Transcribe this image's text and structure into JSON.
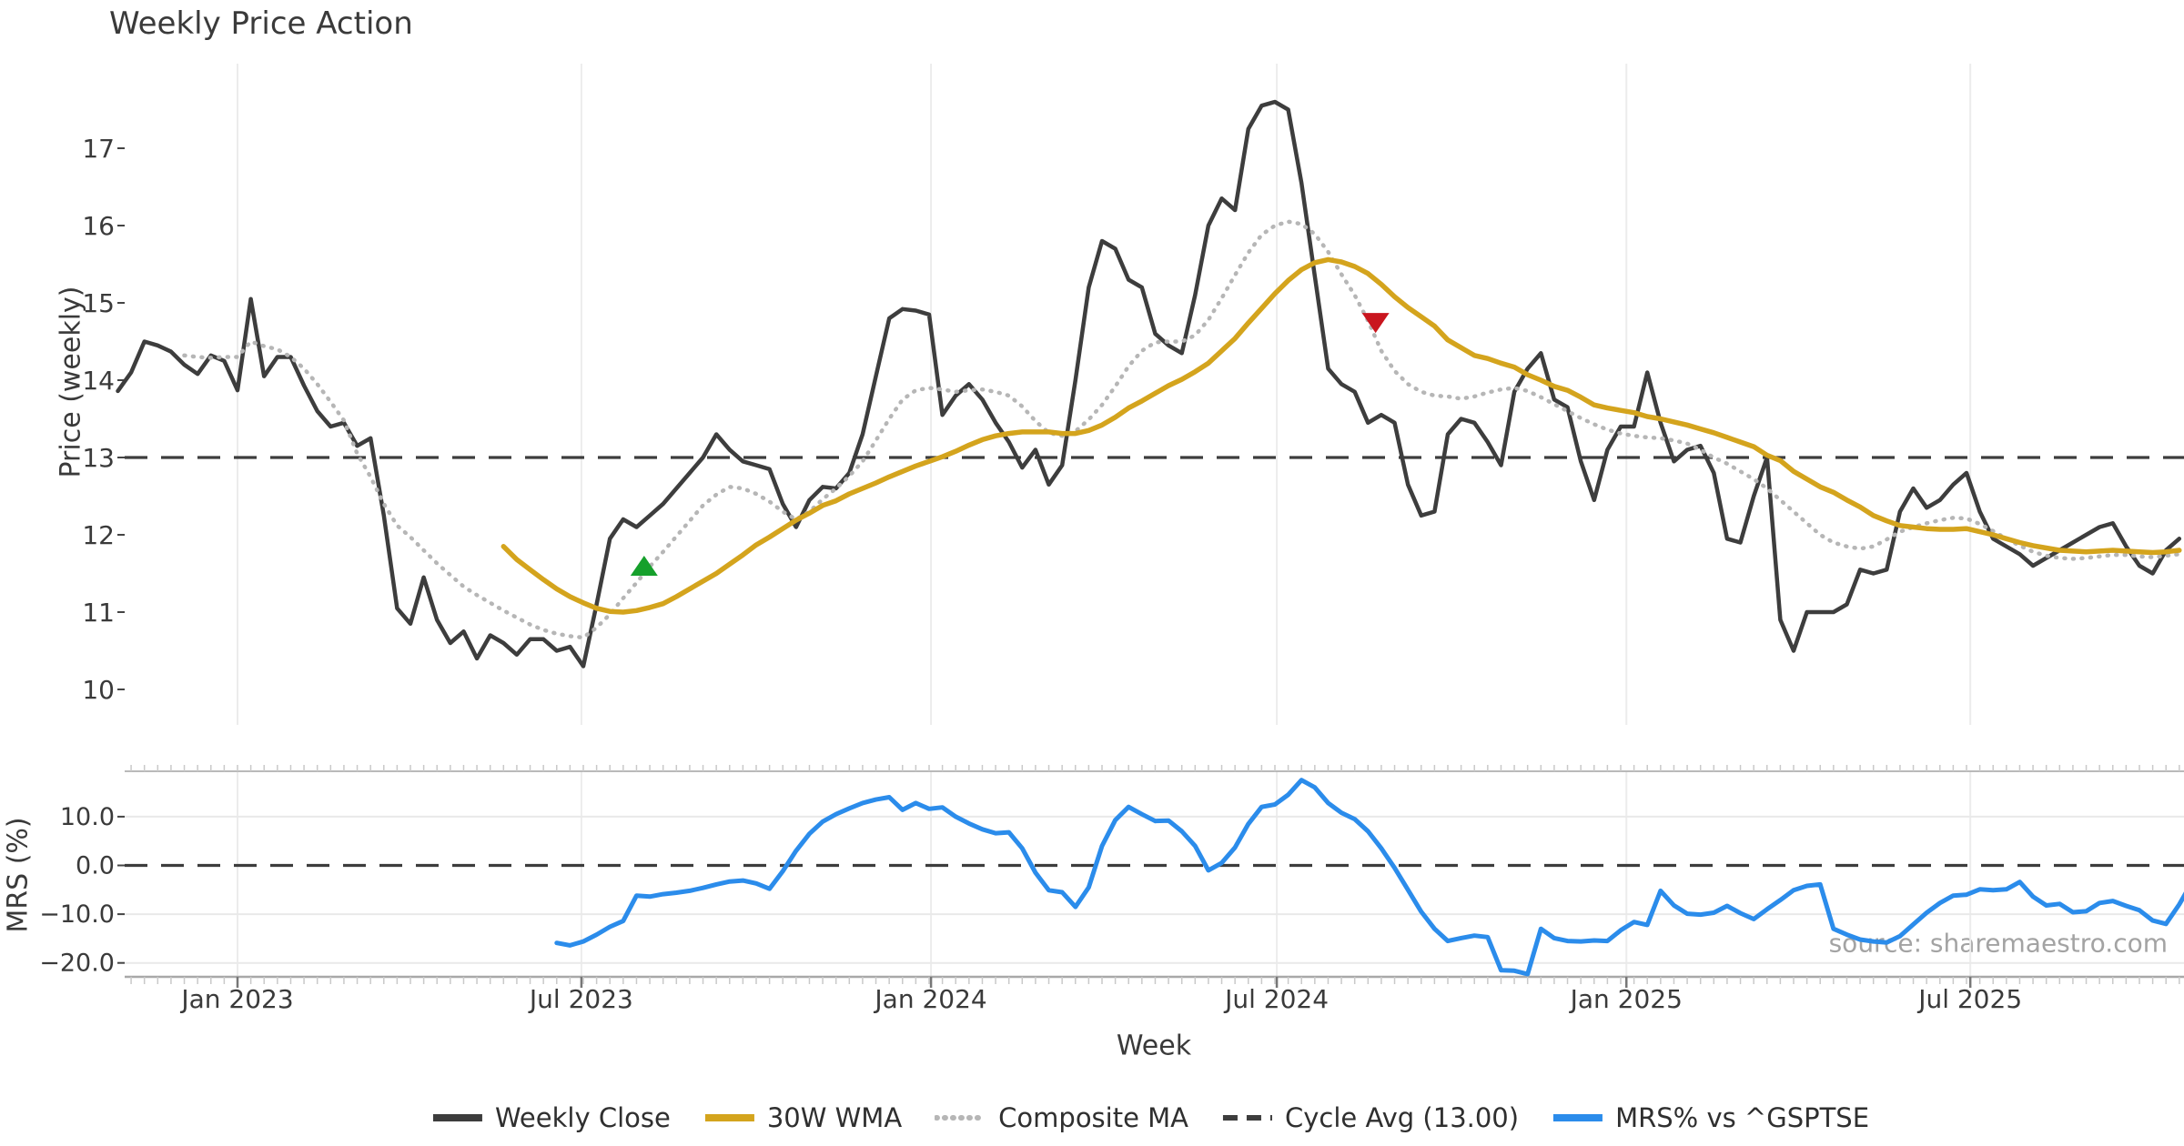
{
  "title": "Weekly Price Action",
  "source_note": "source: sharemaestro.com",
  "colors": {
    "close": "#3d3d3d",
    "wma": "#d4a41d",
    "composite": "#b6b6b6",
    "cycle_dash": "#3d3d3d",
    "mrs_blue": "#2b8ceb",
    "buy_green": "#16a02c",
    "sell_red": "#c9151e",
    "gridline": "#ececec",
    "axis_text": "#3a3a3a",
    "panel_border": "#b9b9b9"
  },
  "legend": {
    "items": [
      {
        "label": "Weekly Close",
        "color": "#3d3d3d",
        "style": "solid"
      },
      {
        "label": "30W WMA",
        "color": "#d4a41d",
        "style": "solid"
      },
      {
        "label": "Composite MA",
        "color": "#b6b6b6",
        "style": "dotted"
      },
      {
        "label": "Cycle Avg (13.00)",
        "color": "#3d3d3d",
        "style": "dashed"
      },
      {
        "label": "MRS% vs ^GSPTSE",
        "color": "#2b8ceb",
        "style": "solid"
      }
    ]
  },
  "chart_data": [
    {
      "type": "line",
      "panel": "price",
      "title": "Weekly Price Action",
      "ylabel": "Price (weekly)",
      "yticks": [
        17,
        16,
        15,
        14,
        13,
        12,
        11,
        10
      ],
      "ylim": [
        9.5,
        18.1
      ],
      "cycle_avg": 13.0,
      "grid": "vertical",
      "xticks": [
        {
          "date": "2023-01-01",
          "label": "Jan 2023"
        },
        {
          "date": "2023-07-01",
          "label": "Jul 2023"
        },
        {
          "date": "2024-01-01",
          "label": "Jan 2024"
        },
        {
          "date": "2024-07-01",
          "label": "Jul 2024"
        },
        {
          "date": "2025-01-01",
          "label": "Jan 2025"
        },
        {
          "date": "2025-07-01",
          "label": "Jul 2025"
        }
      ],
      "series": [
        {
          "name": "Weekly Close",
          "style": "solid",
          "color": "#3d3d3d",
          "width": 4.5,
          "start_date": "2022-10-30",
          "step_days": 7,
          "values": [
            13.86,
            14.1,
            14.5,
            14.45,
            14.37,
            14.2,
            14.08,
            14.32,
            14.25,
            13.87,
            15.05,
            14.05,
            14.3,
            14.3,
            13.93,
            13.6,
            13.4,
            13.45,
            13.15,
            13.25,
            12.25,
            11.05,
            10.85,
            11.45,
            10.9,
            10.6,
            10.75,
            10.4,
            10.7,
            10.6,
            10.45,
            10.65,
            10.65,
            10.5,
            10.55,
            10.3,
            11.1,
            11.95,
            12.2,
            12.1,
            12.25,
            12.4,
            12.6,
            12.8,
            13.0,
            13.3,
            13.1,
            12.95,
            12.9,
            12.85,
            12.4,
            12.1,
            12.45,
            12.62,
            12.6,
            12.8,
            13.3,
            14.05,
            14.8,
            14.92,
            14.9,
            14.85,
            13.55,
            13.8,
            13.95,
            13.75,
            13.45,
            13.2,
            12.87,
            13.1,
            12.65,
            12.9,
            14.0,
            15.2,
            15.8,
            15.7,
            15.3,
            15.2,
            14.6,
            14.45,
            14.35,
            15.1,
            16.0,
            16.35,
            16.2,
            17.25,
            17.55,
            17.6,
            17.5,
            16.55,
            15.35,
            14.15,
            13.95,
            13.85,
            13.45,
            13.55,
            13.45,
            12.65,
            12.25,
            12.3,
            13.3,
            13.5,
            13.45,
            13.2,
            12.9,
            13.85,
            14.15,
            14.35,
            13.75,
            13.65,
            12.95,
            12.45,
            13.1,
            13.4,
            13.4,
            14.1,
            13.45,
            12.95,
            13.1,
            13.15,
            12.8,
            11.95,
            11.9,
            12.5,
            13.0,
            10.9,
            10.5,
            11.0,
            11.0,
            11.0,
            11.1,
            11.55,
            11.5,
            11.55,
            12.3,
            12.6,
            12.35,
            12.45,
            12.65,
            12.8,
            12.3,
            11.95,
            11.85,
            11.75,
            11.6,
            11.7,
            11.8,
            11.9,
            12.0,
            12.1,
            12.15,
            11.85,
            11.6,
            11.5,
            11.8,
            11.95
          ]
        },
        {
          "name": "30W WMA",
          "style": "solid",
          "color": "#d4a41d",
          "width": 5.5,
          "start_date": "2023-05-21",
          "step_days": 7,
          "values": [
            11.85,
            11.68,
            11.55,
            11.42,
            11.3,
            11.2,
            11.12,
            11.05,
            11.01,
            11.0,
            11.02,
            11.06,
            11.11,
            11.2,
            11.3,
            11.4,
            11.5,
            11.62,
            11.74,
            11.87,
            11.97,
            12.08,
            12.19,
            12.28,
            12.38,
            12.44,
            12.53,
            12.6,
            12.67,
            12.75,
            12.82,
            12.89,
            12.95,
            13.01,
            13.08,
            13.16,
            13.23,
            13.28,
            13.31,
            13.33,
            13.33,
            13.33,
            13.31,
            13.31,
            13.35,
            13.42,
            13.52,
            13.64,
            13.73,
            13.83,
            13.93,
            14.01,
            14.11,
            14.22,
            14.38,
            14.54,
            14.74,
            14.93,
            15.12,
            15.29,
            15.43,
            15.52,
            15.56,
            15.53,
            15.47,
            15.38,
            15.24,
            15.08,
            14.94,
            14.82,
            14.7,
            14.52,
            14.42,
            14.32,
            14.28,
            14.22,
            14.17,
            14.07,
            14.0,
            13.92,
            13.87,
            13.78,
            13.68,
            13.64,
            13.61,
            13.58,
            13.53,
            13.5,
            13.46,
            13.42,
            13.37,
            13.32,
            13.26,
            13.2,
            13.14,
            13.03,
            12.96,
            12.82,
            12.72,
            12.62,
            12.55,
            12.45,
            12.36,
            12.25,
            12.18,
            12.12,
            12.1,
            12.08,
            12.07,
            12.07,
            12.08,
            12.04,
            12.0,
            11.95,
            11.9,
            11.86,
            11.83,
            11.8,
            11.79,
            11.78,
            11.79,
            11.8,
            11.79,
            11.78,
            11.77,
            11.78,
            11.8
          ]
        },
        {
          "name": "Composite MA",
          "style": "dotted",
          "color": "#b6b6b6",
          "width": 4.5,
          "start_date": "2022-12-04",
          "step_days": 7,
          "values": [
            14.32,
            14.3,
            14.29,
            14.3,
            14.3,
            14.5,
            14.44,
            14.4,
            14.3,
            14.15,
            13.95,
            13.72,
            13.48,
            13.05,
            12.75,
            12.4,
            12.12,
            11.97,
            11.8,
            11.63,
            11.48,
            11.33,
            11.22,
            11.12,
            11.02,
            10.93,
            10.84,
            10.77,
            10.72,
            10.69,
            10.67,
            10.8,
            10.97,
            11.18,
            11.38,
            11.59,
            11.78,
            11.98,
            12.18,
            12.38,
            12.52,
            12.62,
            12.6,
            12.53,
            12.43,
            12.3,
            12.2,
            12.3,
            12.46,
            12.6,
            12.76,
            12.95,
            13.22,
            13.5,
            13.75,
            13.87,
            13.9,
            13.88,
            13.85,
            13.87,
            13.88,
            13.85,
            13.8,
            13.66,
            13.47,
            13.32,
            13.28,
            13.34,
            13.49,
            13.68,
            13.92,
            14.18,
            14.38,
            14.49,
            14.5,
            14.5,
            14.58,
            14.78,
            15.06,
            15.36,
            15.65,
            15.88,
            16.0,
            16.05,
            16.02,
            15.89,
            15.66,
            15.37,
            15.1,
            14.77,
            14.38,
            14.12,
            13.95,
            13.85,
            13.8,
            13.79,
            13.76,
            13.79,
            13.84,
            13.88,
            13.9,
            13.86,
            13.78,
            13.69,
            13.6,
            13.51,
            13.43,
            13.36,
            13.31,
            13.28,
            13.26,
            13.25,
            13.22,
            13.18,
            13.1,
            13.0,
            12.92,
            12.82,
            12.72,
            12.6,
            12.45,
            12.3,
            12.15,
            12.0,
            11.9,
            11.85,
            11.82,
            11.85,
            11.94,
            12.04,
            12.1,
            12.15,
            12.19,
            12.22,
            12.21,
            12.14,
            12.05,
            11.95,
            11.86,
            11.78,
            11.73,
            11.7,
            11.69,
            11.7,
            11.72,
            11.74,
            11.74,
            11.72,
            11.71,
            11.73,
            11.75
          ]
        }
      ],
      "markers": [
        {
          "shape": "triangle-up",
          "color": "#16a02c",
          "date": "2023-08-03",
          "value": 11.6
        },
        {
          "shape": "triangle-down",
          "color": "#c9151e",
          "date": "2024-08-22",
          "value": 14.74
        }
      ]
    },
    {
      "type": "line",
      "panel": "mrs",
      "ylabel": "MRS (%)",
      "xlabel": "Week",
      "yticks": [
        {
          "value": 10,
          "label": "10.0"
        },
        {
          "value": 0,
          "label": "0.0"
        },
        {
          "value": -10,
          "label": "−10.0"
        },
        {
          "value": -20,
          "label": "−20.0"
        }
      ],
      "ylim": [
        -22.9,
        19.3
      ],
      "zero_line": 0.0,
      "series": [
        {
          "name": "MRS% vs ^GSPTSE",
          "style": "solid",
          "color": "#2b8ceb",
          "width": 5,
          "start_date": "2023-06-18",
          "step_days": 7,
          "values": [
            -15.9,
            -16.4,
            -15.6,
            -14.2,
            -12.6,
            -11.4,
            -6.2,
            -6.4,
            -5.9,
            -5.6,
            -5.2,
            -4.6,
            -3.9,
            -3.3,
            -3.1,
            -3.7,
            -4.8,
            -1.2,
            3.0,
            6.5,
            9.0,
            10.5,
            11.7,
            12.8,
            13.5,
            14.0,
            11.4,
            12.8,
            11.6,
            11.9,
            10.0,
            8.6,
            7.4,
            6.6,
            6.8,
            3.5,
            -1.5,
            -5.1,
            -5.5,
            -8.5,
            -4.5,
            4.0,
            9.3,
            12.0,
            10.5,
            9.1,
            9.2,
            7.0,
            4.0,
            -1.0,
            0.5,
            3.7,
            8.5,
            12.0,
            12.5,
            14.5,
            17.5,
            16.0,
            12.8,
            10.8,
            9.5,
            7.0,
            3.5,
            -0.5,
            -5.0,
            -9.5,
            -13.0,
            -15.5,
            -14.9,
            -14.4,
            -14.7,
            -21.5,
            -21.6,
            -22.3,
            -13.0,
            -14.9,
            -15.5,
            -15.6,
            -15.4,
            -15.5,
            -13.3,
            -11.6,
            -12.2,
            -5.2,
            -8.2,
            -9.9,
            -10.1,
            -9.7,
            -8.3,
            -9.8,
            -11.0,
            -9.0,
            -7.1,
            -5.1,
            -4.2,
            -3.9,
            -13.0,
            -14.2,
            -15.2,
            -15.6,
            -15.8,
            -14.5,
            -12.1,
            -9.7,
            -7.7,
            -6.2,
            -6.0,
            -4.9,
            -5.1,
            -4.9,
            -3.4,
            -6.4,
            -8.2,
            -7.9,
            -9.6,
            -9.4,
            -7.7,
            -7.3,
            -8.3,
            -9.2,
            -11.3,
            -12.0,
            -8.0,
            -3.2
          ]
        }
      ]
    }
  ]
}
